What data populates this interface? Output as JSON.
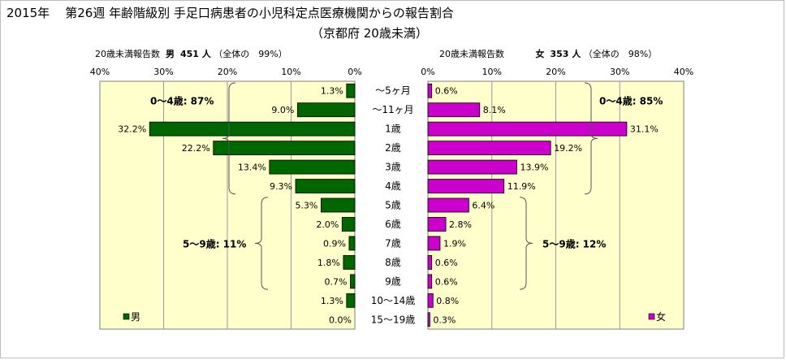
{
  "title": {
    "year": "2015年",
    "main": "第26週 年齢階級別 手足口病患者の小児科定点医療機関からの報告割合",
    "sub": "（京都府 20歳未満）"
  },
  "left_header": {
    "label": "20歳未満報告数",
    "sex": "男",
    "count": "451 人",
    "coverage": "（全体の　99%）"
  },
  "right_header": {
    "label": "20歳未満報告数",
    "sex": "女",
    "count": "353 人",
    "coverage": "（全体の　98%）"
  },
  "annotations": {
    "male_0_4": "0～4歳: 87%",
    "male_5_9": "5～9歳: 11%",
    "female_0_4": "0～4歳: 85%",
    "female_5_9": "5～9歳: 12%"
  },
  "colors": {
    "male": "#006600",
    "female": "#cc00cc",
    "plot_bg": "#ffffcc",
    "grid": "#999999"
  },
  "chart_data": {
    "type": "bar",
    "orientation": "horizontal-butterfly",
    "categories": [
      "～5ヶ月",
      "～11ヶ月",
      "1歳",
      "2歳",
      "3歳",
      "4歳",
      "5歳",
      "6歳",
      "7歳",
      "8歳",
      "9歳",
      "10～14歳",
      "15～19歳"
    ],
    "x_ticks": [
      "40%",
      "30%",
      "20%",
      "10%",
      "0%"
    ],
    "x_ticks_right": [
      "0%",
      "10%",
      "20%",
      "30%",
      "40%"
    ],
    "xlim": [
      0,
      40
    ],
    "series": [
      {
        "name": "男",
        "values": [
          1.3,
          9.0,
          32.2,
          22.2,
          13.4,
          9.3,
          5.3,
          2.0,
          0.9,
          1.8,
          0.7,
          1.3,
          0.0
        ],
        "labels": [
          "1.3%",
          "9.0%",
          "32.2%",
          "22.2%",
          "13.4%",
          "9.3%",
          "5.3%",
          "2.0%",
          "0.9%",
          "1.8%",
          "0.7%",
          "1.3%",
          "0.0%"
        ]
      },
      {
        "name": "女",
        "values": [
          0.6,
          8.1,
          31.1,
          19.2,
          13.9,
          11.9,
          6.4,
          2.8,
          1.9,
          0.6,
          0.6,
          0.8,
          0.3
        ],
        "labels": [
          "0.6%",
          "8.1%",
          "31.1%",
          "19.2%",
          "13.9%",
          "11.9%",
          "6.4%",
          "2.8%",
          "1.9%",
          "0.6%",
          "0.6%",
          "0.8%",
          "0.3%"
        ]
      }
    ],
    "legend": [
      "男",
      "女"
    ],
    "legend_placement": "bottom-corners",
    "grid": true
  }
}
